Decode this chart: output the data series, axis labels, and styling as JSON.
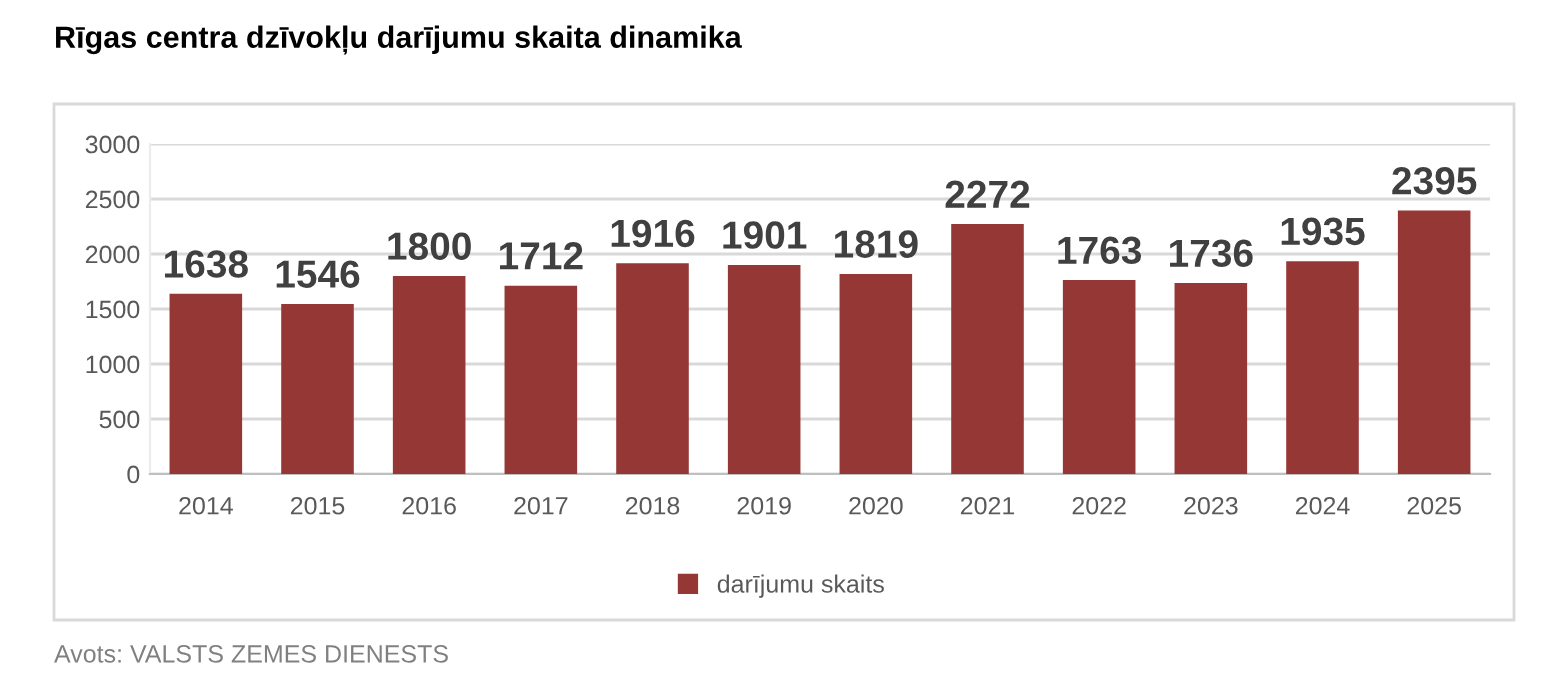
{
  "chart_data": {
    "type": "bar",
    "title": "Rīgas centra dzīvokļu darījumu skaita dinamika",
    "categories": [
      "2014",
      "2015",
      "2016",
      "2017",
      "2018",
      "2019",
      "2020",
      "2021",
      "2022",
      "2023",
      "2024",
      "2025"
    ],
    "series": [
      {
        "name": "darījumu skaits",
        "color": "#953735",
        "values": [
          1638,
          1546,
          1800,
          1712,
          1916,
          1901,
          1819,
          2272,
          1763,
          1736,
          1935,
          2395
        ]
      }
    ],
    "ylim": [
      0,
      3000
    ],
    "yticks": [
      0,
      500,
      1000,
      1500,
      2000,
      2500,
      3000
    ],
    "grid": "y",
    "legend": "bottom",
    "data_labels": true,
    "annotations": [
      "Avots: VALSTS ZEMES DIENESTS"
    ]
  }
}
